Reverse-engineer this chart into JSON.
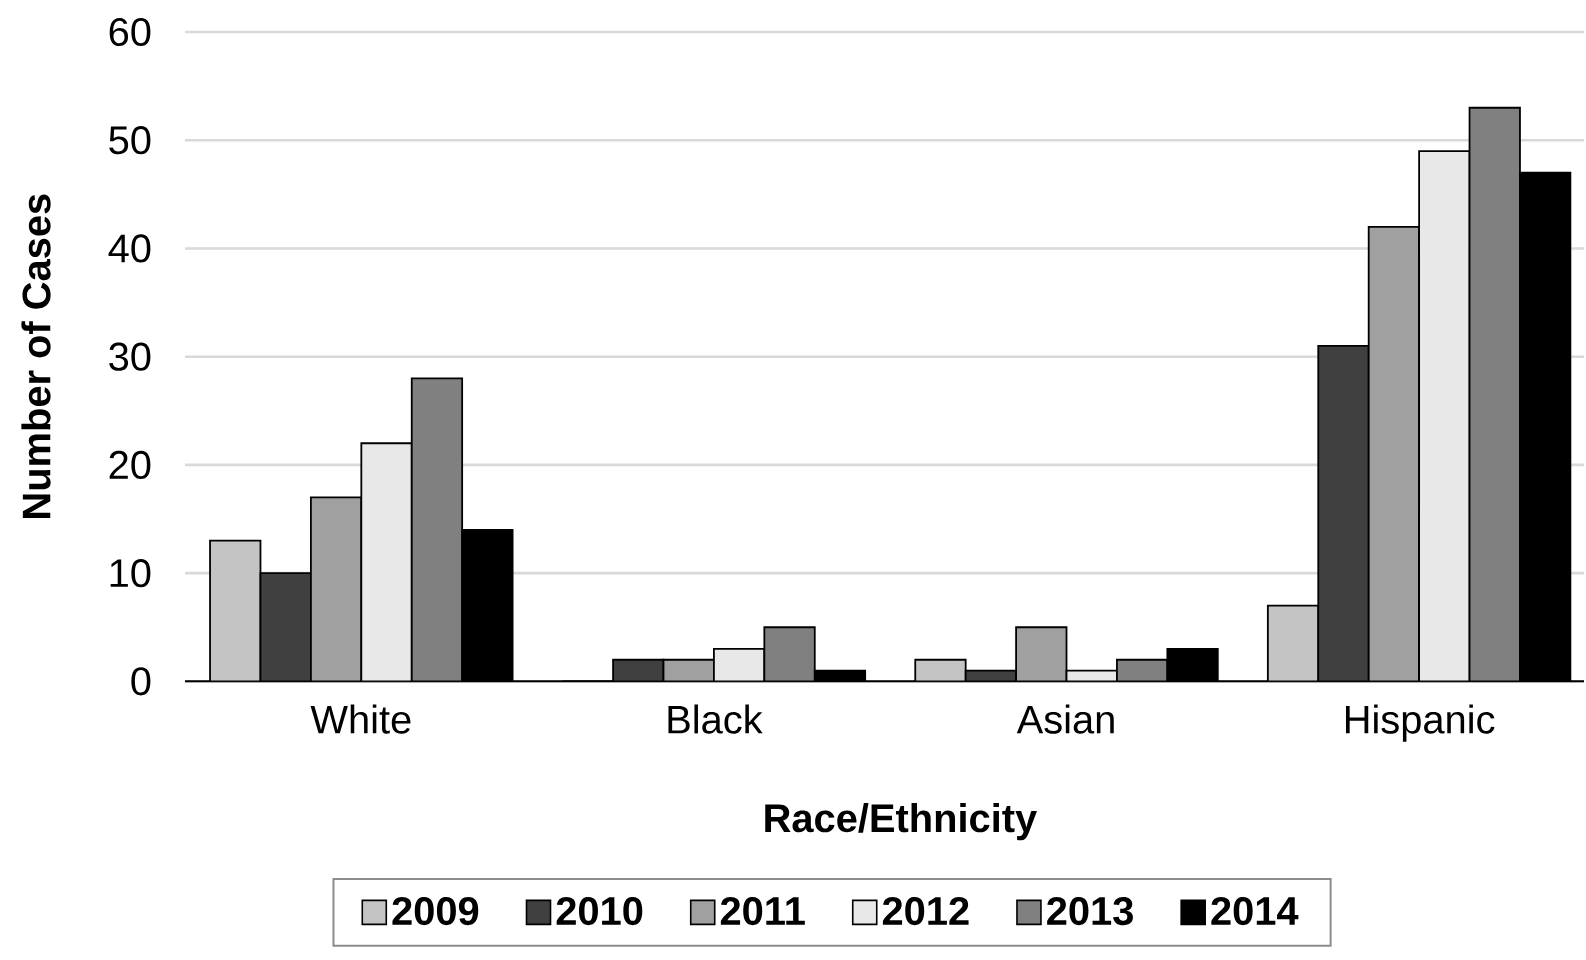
{
  "chart_data": {
    "type": "bar",
    "xlabel": "Race/Ethnicity",
    "ylabel": "Number of Cases",
    "categories": [
      "White",
      "Black",
      "Asian",
      "Hispanic"
    ],
    "series": [
      {
        "name": "2009",
        "color": "#c4c4c4",
        "values": [
          13,
          0,
          2,
          7
        ]
      },
      {
        "name": "2010",
        "color": "#404040",
        "values": [
          10,
          2,
          1,
          31
        ]
      },
      {
        "name": "2011",
        "color": "#a0a0a0",
        "values": [
          17,
          2,
          5,
          42
        ]
      },
      {
        "name": "2012",
        "color": "#e8e8e8",
        "values": [
          22,
          3,
          1,
          49
        ]
      },
      {
        "name": "2013",
        "color": "#808080",
        "values": [
          28,
          5,
          2,
          53
        ]
      },
      {
        "name": "2014",
        "color": "#000000",
        "values": [
          14,
          1,
          3,
          47
        ]
      }
    ],
    "ylim": [
      0,
      60
    ],
    "yticks": [
      0,
      10,
      20,
      30,
      40,
      50,
      60
    ],
    "grid": "y",
    "legend": "bottom"
  }
}
